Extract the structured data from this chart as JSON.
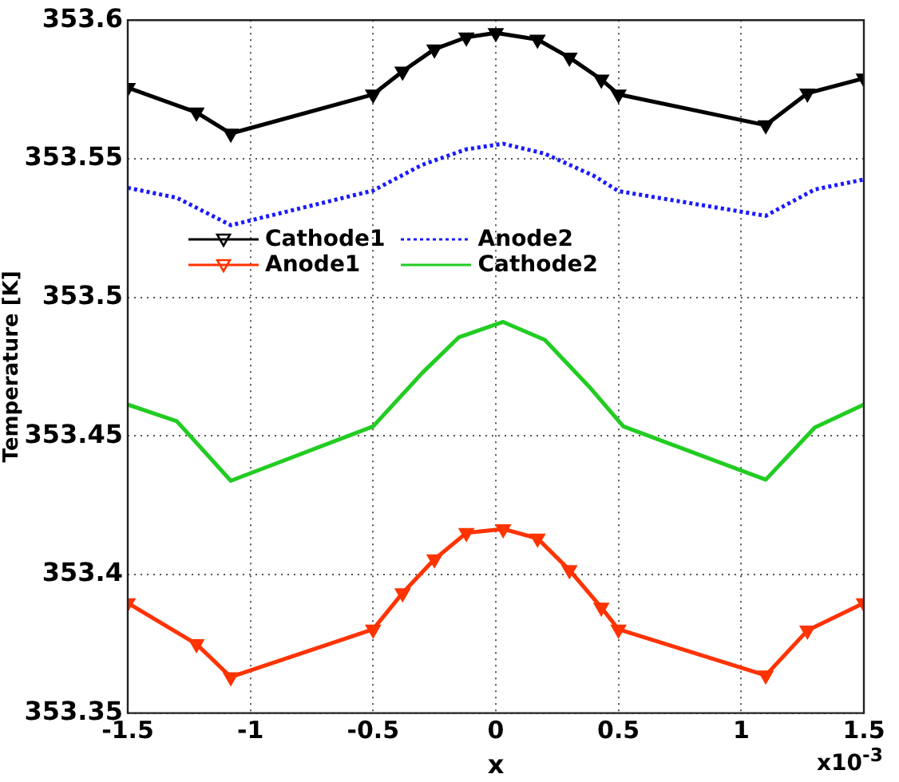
{
  "chart_data": {
    "type": "line",
    "xlabel": "x",
    "ylabel": "Temperature [K]",
    "annotations": [
      "x10$^{-3}$"
    ],
    "xlim": [
      -1.5,
      1.5
    ],
    "xticks": [
      -1.5,
      -1,
      -0.5,
      0,
      0.5,
      1,
      1.5
    ],
    "ylim": [
      353.35,
      353.6
    ],
    "yticks": [
      353.35,
      353.4,
      353.45,
      353.5,
      353.55,
      353.6
    ],
    "grid": true,
    "legend": "top left",
    "line_style": "solid",
    "series": [
      {
        "name": "Cathode1",
        "color": "#000000",
        "marker": "triangle",
        "x": [
          -1.5,
          -1.22,
          -1.08,
          -0.5,
          -0.38,
          -0.25,
          -0.12,
          0,
          0.17,
          0.3,
          0.43,
          0.5,
          1.1,
          1.27,
          1.5
        ],
        "values": [
          353.5756,
          353.5667,
          353.5591,
          353.5732,
          353.5815,
          353.5895,
          353.5938,
          353.5954,
          353.593,
          353.5865,
          353.5786,
          353.5732,
          353.5621,
          353.5736,
          353.579
        ]
      },
      {
        "name": "Anode1",
        "color": "#ff3300",
        "marker": "triangle",
        "x": [
          -1.5,
          -1.22,
          -1.08,
          -0.5,
          -0.38,
          -0.25,
          -0.12,
          0.03,
          0.17,
          0.3,
          0.43,
          0.5,
          1.1,
          1.27,
          1.5
        ],
        "values": [
          353.3897,
          353.3749,
          353.363,
          353.3802,
          353.3933,
          353.4055,
          353.415,
          353.4164,
          353.413,
          353.4016,
          353.3881,
          353.3802,
          353.3636,
          353.3798,
          353.3897
        ]
      },
      {
        "name": "Anode2",
        "color": "#1a1aff",
        "marker": "none",
        "line_style": "dotted",
        "x": [
          -1.5,
          -1.3,
          -1.08,
          -0.5,
          -0.3,
          -0.12,
          0.03,
          0.2,
          0.4,
          0.5,
          1.1,
          1.3,
          1.5
        ],
        "values": [
          353.5395,
          353.5359,
          353.526,
          353.5385,
          353.5478,
          353.5534,
          353.5554,
          353.5518,
          353.5438,
          353.5383,
          353.5294,
          353.5389,
          353.5425
        ]
      },
      {
        "name": "Cathode2",
        "color": "#22cc22",
        "marker": "none",
        "x": [
          -1.5,
          -1.3,
          -1.08,
          -0.5,
          -0.3,
          -0.15,
          0.03,
          0.2,
          0.38,
          0.52,
          1.1,
          1.3,
          1.5
        ],
        "values": [
          353.4613,
          353.4553,
          353.4338,
          353.4534,
          353.4727,
          353.4856,
          353.4911,
          353.4846,
          353.4678,
          353.4534,
          353.4342,
          353.453,
          353.4613
        ]
      }
    ]
  }
}
